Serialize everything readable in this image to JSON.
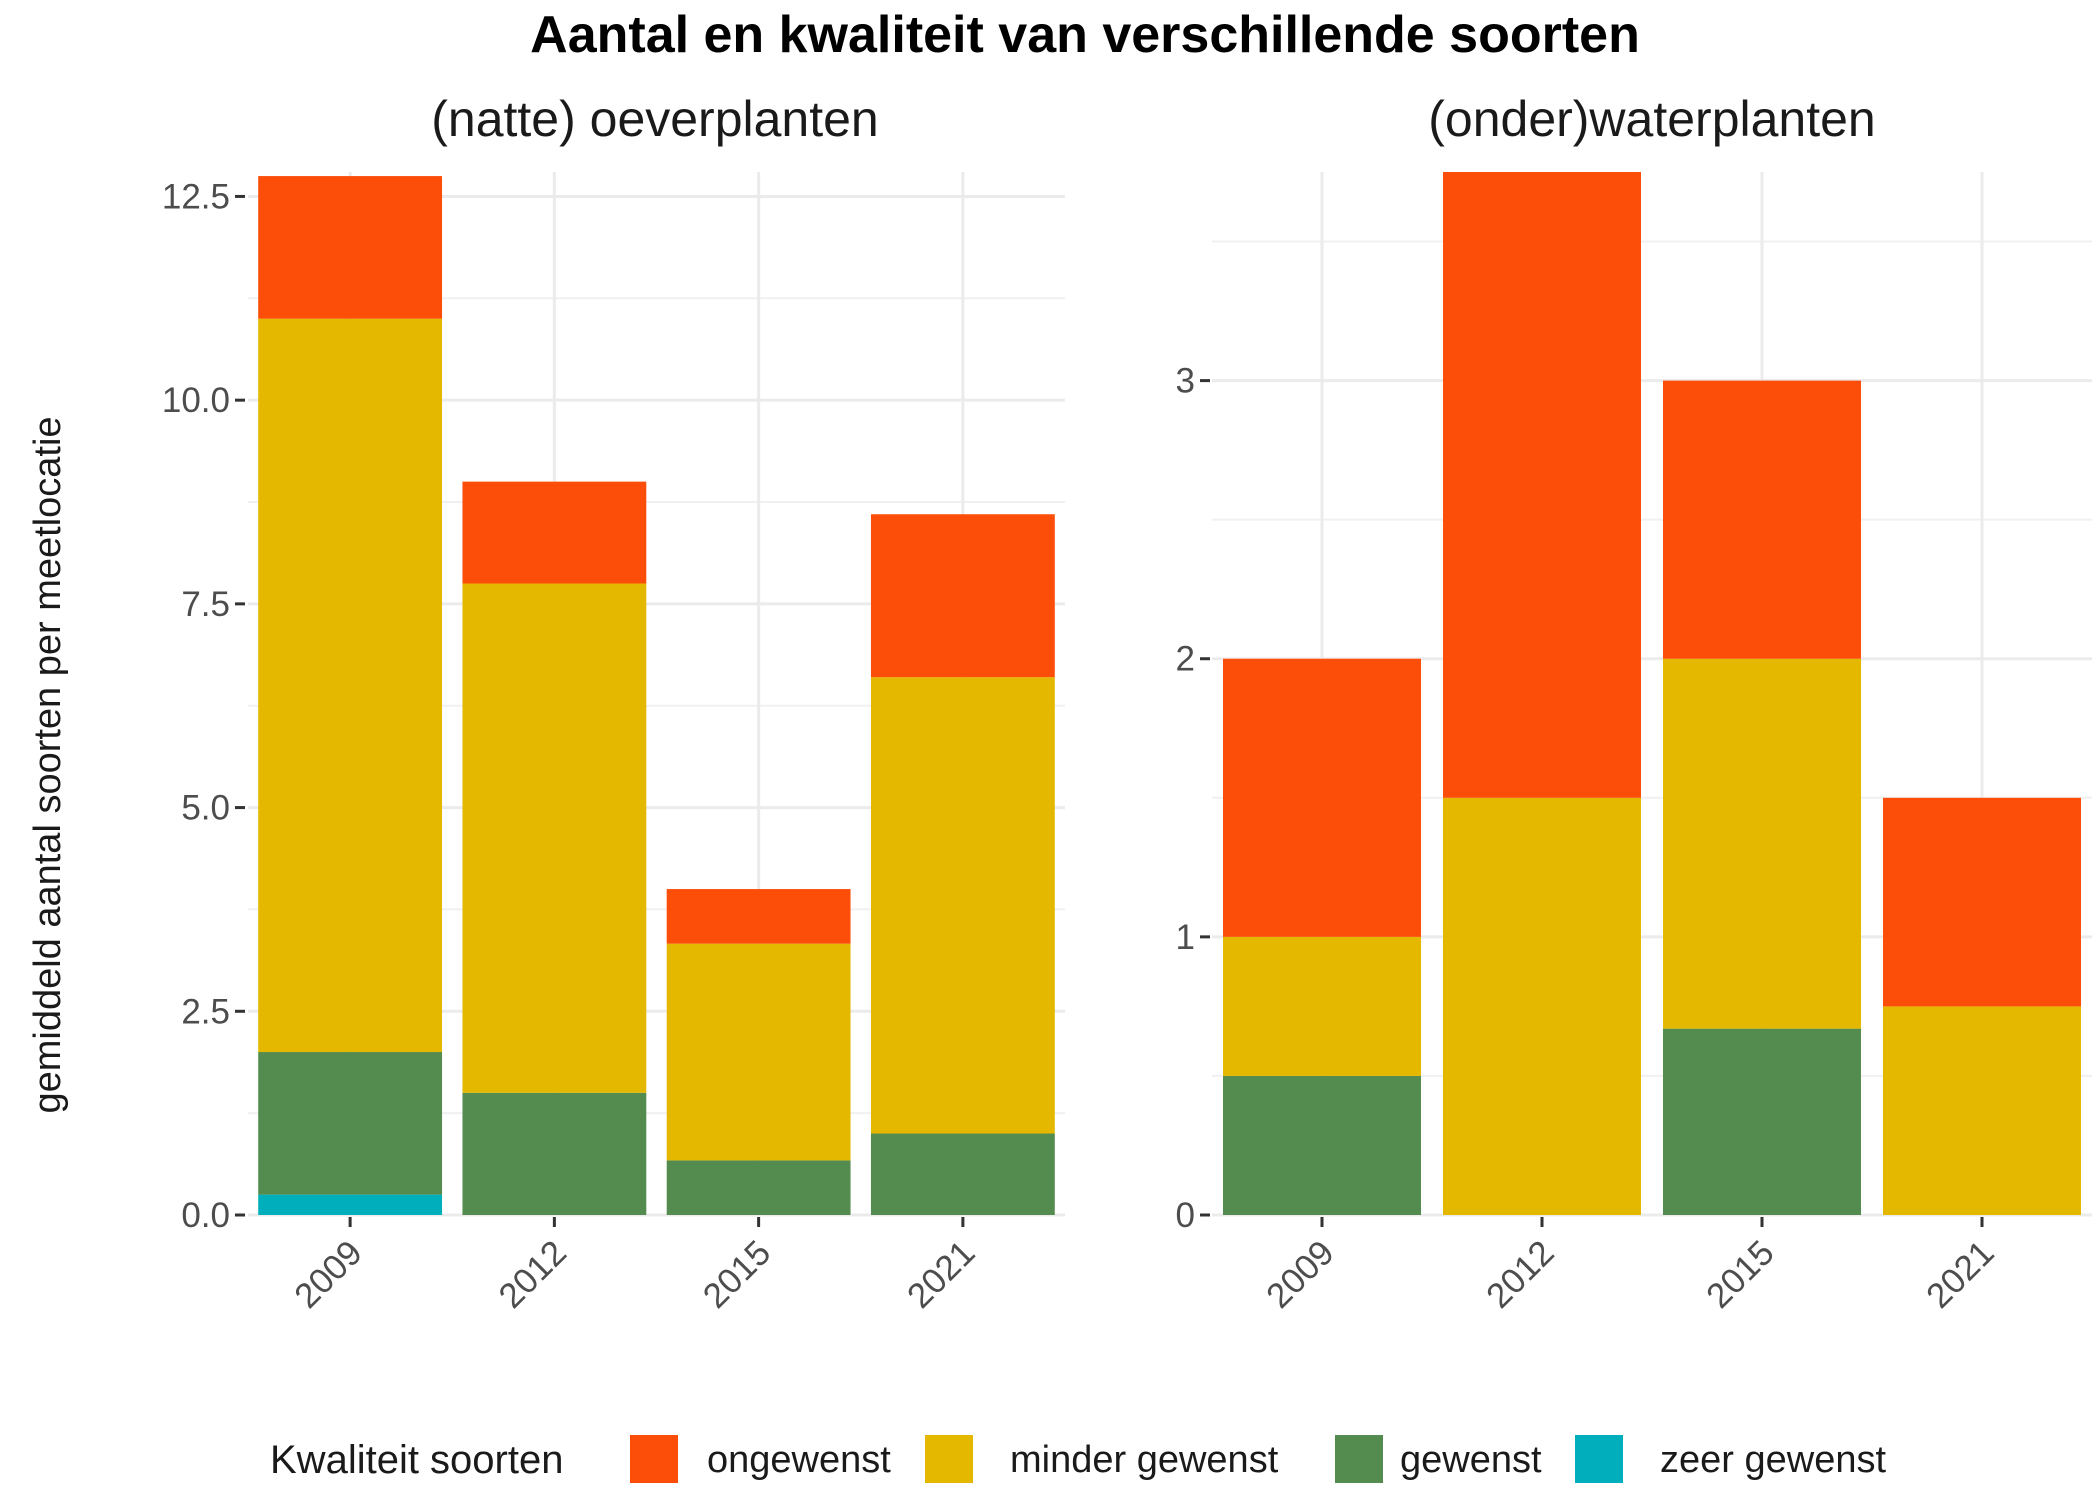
{
  "chart_data": {
    "type": "bar",
    "stacked": true,
    "title": "Aantal en kwaliteit van verschillende soorten",
    "ylabel": "gemiddeld aantal soorten per meetlocatie",
    "categories": [
      "2009",
      "2012",
      "2015",
      "2021"
    ],
    "legend": {
      "title": "Kwaliteit soorten",
      "placement": "bottom",
      "entries": [
        {
          "name": "ongewenst",
          "color": "#FC4E08"
        },
        {
          "name": "minder gewenst",
          "color": "#E5B800"
        },
        {
          "name": "gewenst",
          "color": "#548B4E"
        },
        {
          "name": "zeer gewenst",
          "color": "#00AFBB"
        }
      ]
    },
    "panels": [
      {
        "title": "(natte) oeverplanten",
        "ylim": [
          0,
          12.8
        ],
        "yticks": [
          0.0,
          2.5,
          5.0,
          7.5,
          10.0,
          12.5
        ],
        "ytick_labels": [
          "0.0",
          "2.5",
          "5.0",
          "7.5",
          "10.0",
          "12.5"
        ],
        "series": [
          {
            "name": "zeer gewenst",
            "values": [
              0.25,
              0,
              0,
              0
            ]
          },
          {
            "name": "gewenst",
            "values": [
              1.75,
              1.5,
              0.67,
              1.0
            ]
          },
          {
            "name": "minder gewenst",
            "values": [
              9.0,
              6.25,
              2.66,
              5.6
            ]
          },
          {
            "name": "ongewenst",
            "values": [
              1.75,
              1.25,
              0.67,
              2.0
            ]
          }
        ]
      },
      {
        "title": "(onder)waterplanten",
        "ylim": [
          0,
          3.75
        ],
        "yticks": [
          0,
          1,
          2,
          3
        ],
        "ytick_labels": [
          "0",
          "1",
          "2",
          "3"
        ],
        "series": [
          {
            "name": "zeer gewenst",
            "values": [
              0,
              0,
              0,
              0
            ]
          },
          {
            "name": "gewenst",
            "values": [
              0.5,
              0,
              0.67,
              0
            ]
          },
          {
            "name": "minder gewenst",
            "values": [
              0.5,
              1.5,
              1.33,
              0.75
            ]
          },
          {
            "name": "ongewenst",
            "values": [
              1.0,
              2.25,
              1.0,
              0.75
            ]
          }
        ]
      }
    ],
    "grid": true
  }
}
